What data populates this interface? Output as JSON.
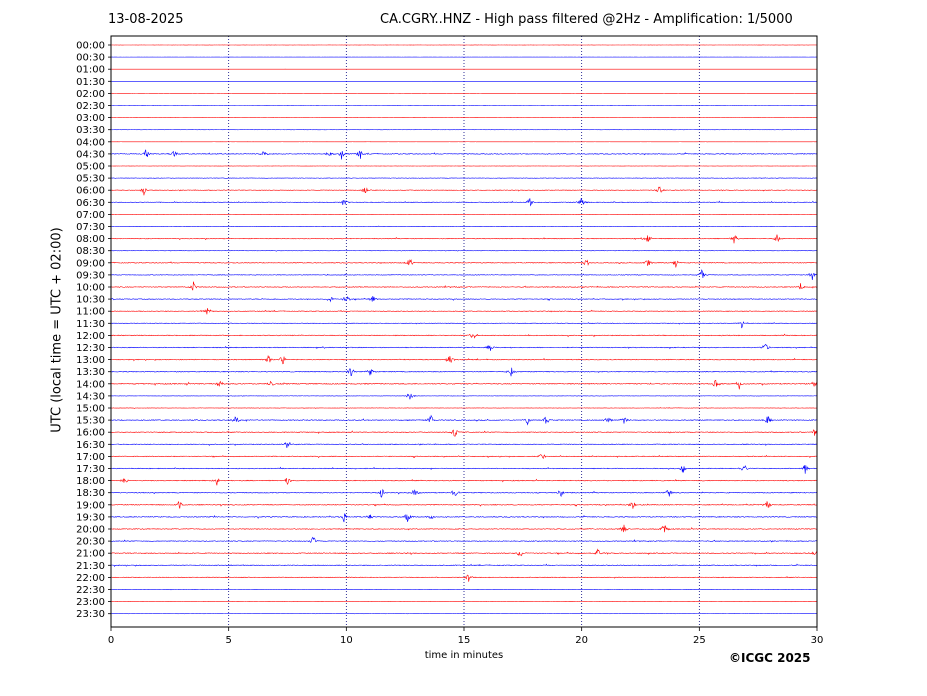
{
  "header": {
    "date": "13-08-2025",
    "title": "CA.CGRY..HNZ - High pass filtered @2Hz - Amplification: 1/5000"
  },
  "footer": {
    "copyright": "©ICGC 2025"
  },
  "chart_data": {
    "type": "line",
    "title": "CA.CGRY..HNZ - High pass filtered @2Hz - Amplification: 1/5000",
    "xlabel": "time in minutes",
    "ylabel": "UTC (local time = UTC + 02:00)",
    "xlim": [
      0,
      30
    ],
    "xticks": [
      0,
      5,
      10,
      15,
      20,
      25,
      30
    ],
    "grid": "vertical dotted lines at 5-minute intervals",
    "colors": {
      "odd_rows": "#0000ff",
      "even_rows": "#ff0000",
      "axis": "#000000",
      "grid": "#000080"
    },
    "rows": [
      "00:00",
      "00:30",
      "01:00",
      "01:30",
      "02:00",
      "02:30",
      "03:00",
      "03:30",
      "04:00",
      "04:30",
      "05:00",
      "05:30",
      "06:00",
      "06:30",
      "07:00",
      "07:30",
      "08:00",
      "08:30",
      "09:00",
      "09:30",
      "10:00",
      "10:30",
      "11:00",
      "11:30",
      "12:00",
      "12:30",
      "13:00",
      "13:30",
      "14:00",
      "14:30",
      "15:00",
      "15:30",
      "16:00",
      "16:30",
      "17:00",
      "17:30",
      "18:00",
      "18:30",
      "19:00",
      "19:30",
      "20:00",
      "20:30",
      "21:00",
      "21:30",
      "22:00",
      "22:30",
      "23:00",
      "23:30"
    ],
    "noise_level": [
      0.05,
      0.05,
      0.05,
      0.05,
      0.05,
      0.05,
      0.1,
      0.15,
      0.1,
      0.6,
      0.1,
      0.35,
      0.45,
      0.5,
      0.15,
      0.3,
      0.5,
      0.25,
      0.55,
      0.45,
      0.6,
      0.55,
      0.5,
      0.45,
      0.6,
      0.6,
      0.6,
      0.6,
      0.7,
      0.25,
      0.25,
      0.65,
      0.6,
      0.55,
      0.55,
      0.55,
      0.6,
      0.6,
      0.6,
      0.65,
      0.6,
      0.6,
      0.65,
      0.6,
      0.55,
      0.2,
      0.15,
      0.1
    ],
    "events": [
      {
        "row": "04:30",
        "minutes": [
          1.5,
          2.7,
          6.5,
          9.3,
          9.8,
          10.6
        ]
      },
      {
        "row": "06:00",
        "minutes": [
          1.4,
          10.8,
          23.3
        ]
      },
      {
        "row": "06:30",
        "minutes": [
          9.9,
          17.8,
          20.0
        ]
      },
      {
        "row": "08:00",
        "minutes": [
          22.8,
          26.5,
          28.3
        ]
      },
      {
        "row": "09:00",
        "minutes": [
          12.7,
          20.2,
          22.8,
          24.0
        ]
      },
      {
        "row": "09:30",
        "minutes": [
          25.1,
          29.8
        ]
      },
      {
        "row": "10:00",
        "minutes": [
          3.5,
          29.3
        ]
      },
      {
        "row": "10:30",
        "minutes": [
          9.3,
          10.0,
          11.1
        ]
      },
      {
        "row": "11:00",
        "minutes": [
          4.1
        ]
      },
      {
        "row": "11:30",
        "minutes": [
          26.8
        ]
      },
      {
        "row": "12:00",
        "minutes": [
          15.4
        ]
      },
      {
        "row": "12:30",
        "minutes": [
          16.1,
          27.8
        ]
      },
      {
        "row": "13:00",
        "minutes": [
          6.7,
          7.3,
          14.4
        ]
      },
      {
        "row": "13:30",
        "minutes": [
          10.2,
          11.0,
          17.0
        ]
      },
      {
        "row": "14:00",
        "minutes": [
          4.6,
          6.8,
          25.7,
          26.7,
          29.9
        ]
      },
      {
        "row": "14:30",
        "minutes": [
          12.7
        ]
      },
      {
        "row": "15:30",
        "minutes": [
          5.3,
          13.6,
          17.7,
          18.5,
          21.1,
          21.8,
          27.9
        ]
      },
      {
        "row": "16:00",
        "minutes": [
          14.6,
          29.9
        ]
      },
      {
        "row": "16:30",
        "minutes": [
          7.5
        ]
      },
      {
        "row": "17:00",
        "minutes": [
          18.3
        ]
      },
      {
        "row": "17:30",
        "minutes": [
          24.3,
          26.9,
          29.5
        ]
      },
      {
        "row": "18:00",
        "minutes": [
          0.6,
          4.5,
          7.5
        ]
      },
      {
        "row": "18:30",
        "minutes": [
          11.5,
          12.9,
          14.6,
          19.1,
          23.7
        ]
      },
      {
        "row": "19:00",
        "minutes": [
          2.9,
          22.2,
          27.9
        ]
      },
      {
        "row": "19:30",
        "minutes": [
          9.9,
          11.0,
          12.6,
          13.6
        ]
      },
      {
        "row": "20:00",
        "minutes": [
          21.8,
          23.5
        ]
      },
      {
        "row": "20:30",
        "minutes": [
          8.6
        ]
      },
      {
        "row": "21:00",
        "minutes": [
          17.4,
          20.7,
          29.9
        ]
      },
      {
        "row": "22:00",
        "minutes": [
          15.2
        ]
      }
    ]
  }
}
